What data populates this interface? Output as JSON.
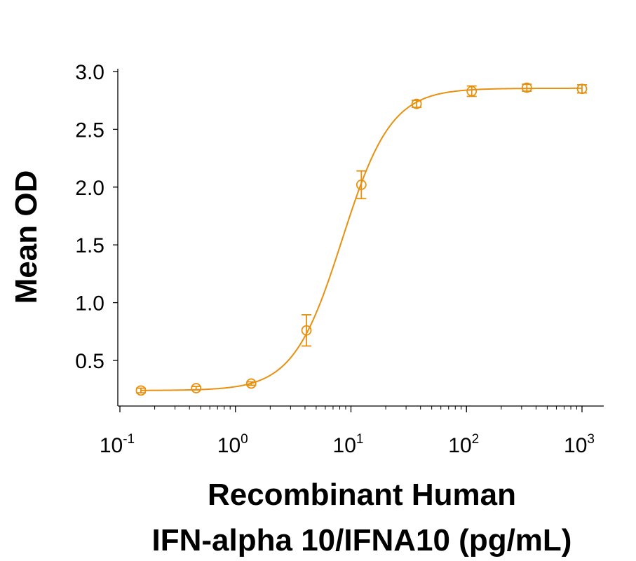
{
  "chart_data": {
    "type": "scatter",
    "title": "",
    "xlabel_lines": [
      "Recombinant Human",
      "IFN-alpha 10/IFNA10 (pg/mL)"
    ],
    "ylabel": "Mean OD",
    "x_scale": "log",
    "xlim": [
      0.1,
      1000
    ],
    "ylim": [
      0.13,
      3.0
    ],
    "x_ticks": [
      {
        "base": "10",
        "exp": "-1",
        "value": 0.1
      },
      {
        "base": "10",
        "exp": "0",
        "value": 1
      },
      {
        "base": "10",
        "exp": "1",
        "value": 10
      },
      {
        "base": "10",
        "exp": "2",
        "value": 100
      },
      {
        "base": "10",
        "exp": "3",
        "value": 1000
      }
    ],
    "y_ticks": [
      {
        "label": "0.5",
        "value": 0.5
      },
      {
        "label": "1.0",
        "value": 1.0
      },
      {
        "label": "1.5",
        "value": 1.5
      },
      {
        "label": "2.0",
        "value": 2.0
      },
      {
        "label": "2.5",
        "value": 2.5
      },
      {
        "label": "3.0",
        "value": 3.0
      }
    ],
    "grid": false,
    "color": "#E8900F",
    "series": [
      {
        "x": [
          0.152,
          0.457,
          1.37,
          4.12,
          12.3,
          37.0,
          111,
          333,
          1000
        ],
        "y": [
          0.24,
          0.26,
          0.3,
          0.76,
          2.02,
          2.72,
          2.83,
          2.86,
          2.85
        ],
        "err": [
          0.02,
          0.015,
          0.015,
          0.135,
          0.12,
          0.03,
          0.045,
          0.03,
          0.035
        ]
      }
    ],
    "fit": {
      "model": "4PL",
      "bottom": 0.24,
      "top": 2.855,
      "ec50": 8.4,
      "hill": 2.05
    }
  }
}
